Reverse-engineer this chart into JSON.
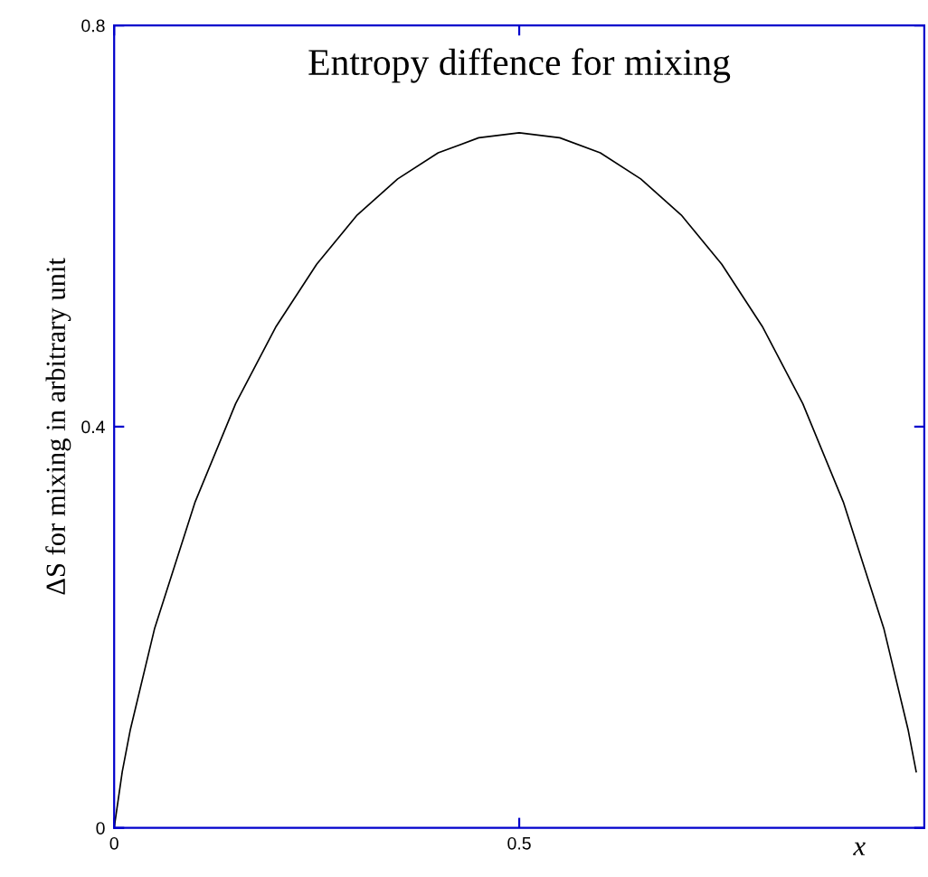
{
  "chart_data": {
    "type": "line",
    "title": "Entropy diffence for mixing",
    "xlabel": "x",
    "ylabel": "ΔS for mixing in arbitrary unit",
    "x": [
      0,
      0.01,
      0.02,
      0.05,
      0.1,
      0.15,
      0.2,
      0.25,
      0.3,
      0.35,
      0.4,
      0.45,
      0.5,
      0.55,
      0.6,
      0.65,
      0.7,
      0.75,
      0.8,
      0.85,
      0.9,
      0.95,
      0.98,
      0.99
    ],
    "series": [
      {
        "color": "#000000",
        "values": [
          0,
          0.056,
          0.098,
          0.199,
          0.325,
          0.423,
          0.5,
          0.562,
          0.611,
          0.647,
          0.673,
          0.688,
          0.693,
          0.688,
          0.673,
          0.647,
          0.611,
          0.562,
          0.5,
          0.423,
          0.325,
          0.199,
          0.098,
          0.056
        ]
      }
    ],
    "xlim": [
      0,
      1
    ],
    "ylim": [
      0,
      0.8
    ],
    "xticks": [
      0,
      0.5
    ],
    "yticks": [
      0,
      0.4,
      0.8
    ],
    "grid": false,
    "legend": false,
    "marker": "none",
    "line_style": "solid"
  }
}
